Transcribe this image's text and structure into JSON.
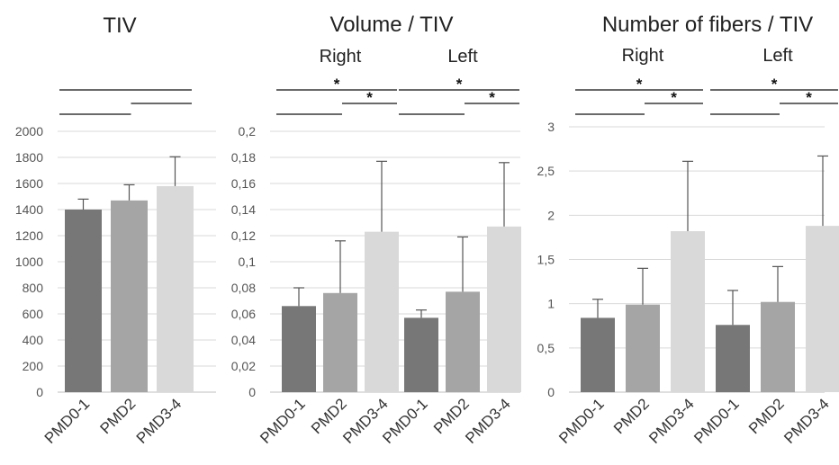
{
  "chart_data": [
    {
      "type": "bar",
      "title": "TIV",
      "xlabel": "",
      "ylabel": "",
      "ylim": [
        0,
        2000
      ],
      "yticks": [
        "0",
        "200",
        "400",
        "600",
        "800",
        "1000",
        "1200",
        "1400",
        "1600",
        "1800",
        "2000"
      ],
      "grid": true,
      "groups": [
        {
          "label": "",
          "categories": [
            "PMD0-1",
            "PMD2",
            "PMD3-4"
          ],
          "values": [
            1400,
            1470,
            1580
          ],
          "errors": [
            80,
            120,
            225
          ]
        }
      ],
      "significance": [
        {
          "group": 0,
          "from": 0,
          "to": 1,
          "star": ""
        },
        {
          "group": 0,
          "from": 1,
          "to": 2,
          "star": ""
        },
        {
          "group": 0,
          "from": 0,
          "to": 2,
          "star": ""
        }
      ]
    },
    {
      "type": "bar",
      "title": "Volume / TIV",
      "xlabel": "",
      "ylabel": "",
      "ylim": [
        0,
        0.2
      ],
      "yticks": [
        "0",
        "0,02",
        "0,04",
        "0,06",
        "0,08",
        "0,1",
        "0,12",
        "0,14",
        "0,16",
        "0,18",
        "0,2"
      ],
      "grid": true,
      "groups": [
        {
          "label": "Right",
          "categories": [
            "PMD0-1",
            "PMD2",
            "PMD3-4"
          ],
          "values": [
            0.066,
            0.076,
            0.123
          ],
          "errors": [
            0.014,
            0.04,
            0.054
          ]
        },
        {
          "label": "Left",
          "categories": [
            "PMD0-1",
            "PMD2",
            "PMD3-4"
          ],
          "values": [
            0.057,
            0.077,
            0.127
          ],
          "errors": [
            0.006,
            0.042,
            0.049
          ]
        }
      ],
      "significance": [
        {
          "group": 0,
          "from": 0,
          "to": 1,
          "star": ""
        },
        {
          "group": 0,
          "from": 1,
          "to": 2,
          "star": "*"
        },
        {
          "group": 0,
          "from": 0,
          "to": 2,
          "star": "*"
        },
        {
          "group": 1,
          "from": 0,
          "to": 1,
          "star": ""
        },
        {
          "group": 1,
          "from": 1,
          "to": 2,
          "star": "*"
        },
        {
          "group": 1,
          "from": 0,
          "to": 2,
          "star": "*"
        }
      ]
    },
    {
      "type": "bar",
      "title": "Number of fibers / TIV",
      "xlabel": "",
      "ylabel": "",
      "ylim": [
        0,
        3
      ],
      "yticks": [
        "0",
        "0,5",
        "1",
        "1,5",
        "2",
        "2,5",
        "3"
      ],
      "grid": true,
      "groups": [
        {
          "label": "Right",
          "categories": [
            "PMD0-1",
            "PMD2",
            "PMD3-4"
          ],
          "values": [
            0.84,
            0.99,
            1.82
          ],
          "errors": [
            0.21,
            0.41,
            0.79
          ]
        },
        {
          "label": "Left",
          "categories": [
            "PMD0-1",
            "PMD2",
            "PMD3-4"
          ],
          "values": [
            0.76,
            1.02,
            1.88
          ],
          "errors": [
            0.39,
            0.4,
            0.79
          ]
        }
      ],
      "significance": [
        {
          "group": 0,
          "from": 0,
          "to": 1,
          "star": ""
        },
        {
          "group": 0,
          "from": 1,
          "to": 2,
          "star": "*"
        },
        {
          "group": 0,
          "from": 0,
          "to": 2,
          "star": "*"
        },
        {
          "group": 1,
          "from": 0,
          "to": 1,
          "star": ""
        },
        {
          "group": 1,
          "from": 1,
          "to": 2,
          "star": "*"
        },
        {
          "group": 1,
          "from": 0,
          "to": 2,
          "star": "*"
        }
      ]
    }
  ],
  "colors": {
    "bar_1": "#777777",
    "bar_2": "#a5a5a5",
    "bar_3": "#d9d9d9",
    "grid": "#d9d9d9",
    "error": "#555555",
    "bracket": "#111111"
  }
}
